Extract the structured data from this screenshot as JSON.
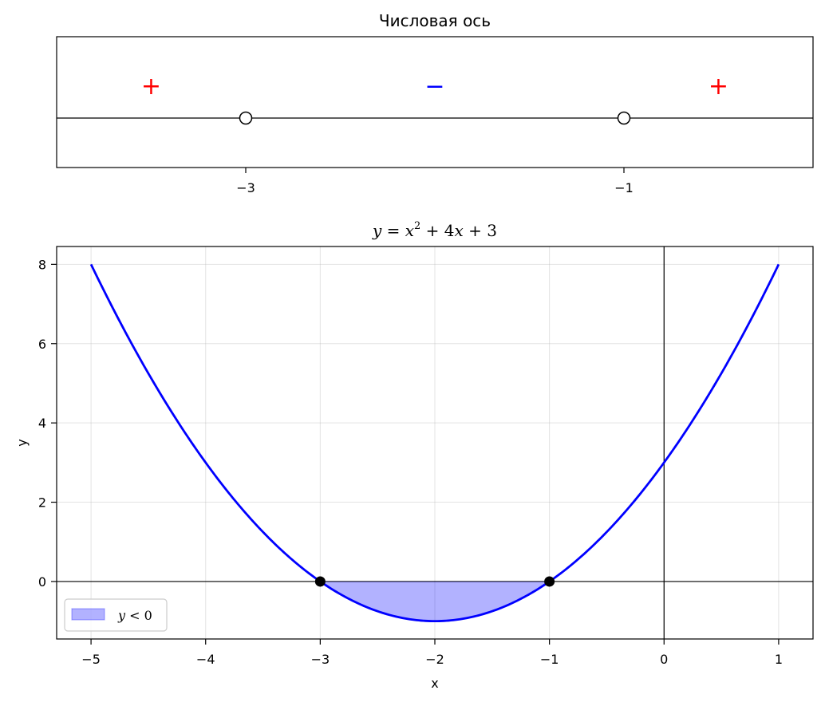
{
  "chart_data": [
    {
      "type": "line",
      "title": "Числовая ось",
      "xlim": [
        -4,
        -0.0
      ],
      "ticks": [
        {
          "value": -3,
          "label": "−3"
        },
        {
          "value": -1,
          "label": "−1"
        }
      ],
      "points": [
        {
          "x": -3,
          "style": "open"
        },
        {
          "x": -1,
          "style": "open"
        }
      ],
      "signs": [
        {
          "x": -3.5,
          "label": "+",
          "color": "#ff0000"
        },
        {
          "x": -2.0,
          "label": "−",
          "color": "#0000ff"
        },
        {
          "x": -0.5,
          "label": "+",
          "color": "#ff0000"
        }
      ]
    },
    {
      "type": "line",
      "title": "y = x² + 4x + 3",
      "xlabel": "x",
      "ylabel": "y",
      "xlim": [
        -5.3,
        1.3
      ],
      "ylim": [
        -1.45,
        8.45
      ],
      "grid": true,
      "legend_position": "lower-left",
      "function": {
        "a": 1,
        "b": 4,
        "c": 3,
        "x_range": [
          -5,
          1
        ]
      },
      "series": [
        {
          "name": "y = x² + 4x + 3",
          "color": "#0000ff"
        }
      ],
      "fill": {
        "name": "y < 0",
        "x_range": [
          -3,
          -1
        ],
        "color": "#0000ff"
      },
      "roots": [
        {
          "x": -3,
          "y": 0
        },
        {
          "x": -1,
          "y": 0
        }
      ],
      "xticks": [
        {
          "value": -5,
          "label": "−5"
        },
        {
          "value": -4,
          "label": "−4"
        },
        {
          "value": -3,
          "label": "−3"
        },
        {
          "value": -2,
          "label": "−2"
        },
        {
          "value": -1,
          "label": "−1"
        },
        {
          "value": 0,
          "label": "0"
        },
        {
          "value": 1,
          "label": "1"
        }
      ],
      "yticks": [
        {
          "value": 0,
          "label": "0"
        },
        {
          "value": 2,
          "label": "2"
        },
        {
          "value": 4,
          "label": "4"
        },
        {
          "value": 6,
          "label": "6"
        },
        {
          "value": 8,
          "label": "8"
        }
      ]
    }
  ]
}
